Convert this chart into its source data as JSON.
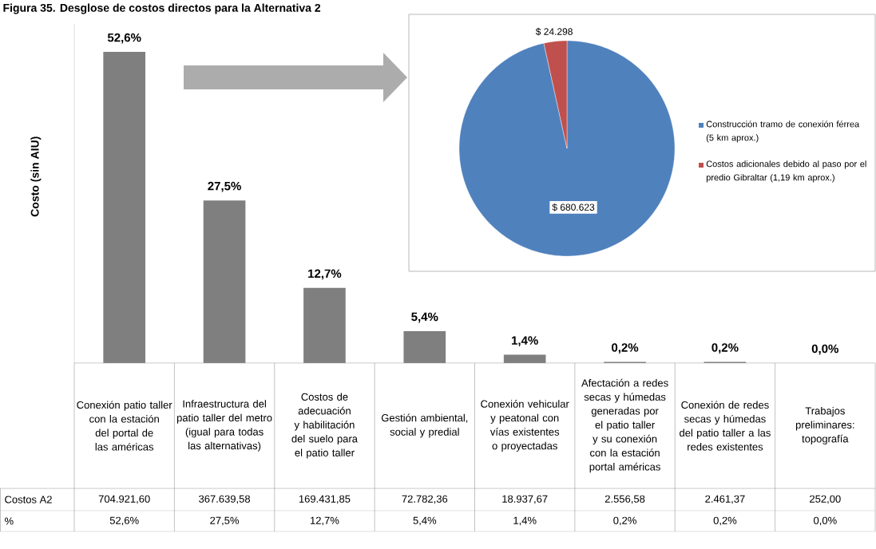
{
  "chart_data": [
    {
      "type": "bar",
      "title": "Figura 35. Desglose de costos directos para la Alternativa 2",
      "ylabel": "Costo  (sin AIU)",
      "color": "#7f7f7f",
      "categories": [
        "Conexión patio taller con la estación del portal de las américas",
        "Infraestructura del patio taller del metro (igual para todas las alternativas)",
        "Costos de adecuación y habilitación del suelo para el patio taller",
        "Gestión ambiental, social y predial",
        "Conexión vehicular y peatonal con vías existentes o proyectadas",
        "Afectación a redes secas y húmedas generadas por el patio taller y su conexión con la estación portal américas",
        "Conexión de redes secas y húmedas del patio taller a las redes existentes",
        "Trabajos preliminares: topografía"
      ],
      "values": [
        52.6,
        27.5,
        12.7,
        5.4,
        1.4,
        0.2,
        0.2,
        0.0
      ],
      "value_labels": [
        "52,6%",
        "27,5%",
        "12,7%",
        "5,4%",
        "1,4%",
        "0,2%",
        "0,2%",
        "0,0%"
      ],
      "annotations": [
        "Costos A2",
        "%",
        "704.921,60",
        "367.639,58",
        "169.431,85",
        "72.782,36",
        "18.937,67",
        "2.556,58",
        "2.461,37",
        "252,00"
      ]
    },
    {
      "type": "pie",
      "categories": [
        "Construcción tramo de conexión férrea (5 km aprox.)",
        "Costos adicionales debido al paso por el predio Gibraltar (1,19 km aprox.)"
      ],
      "values": [
        680623,
        24298
      ],
      "colors": [
        "#4f81bd",
        "#c0504d"
      ],
      "value_labels": [
        "$ 680.623",
        "$ 24.298"
      ],
      "legend": "right"
    }
  ]
}
